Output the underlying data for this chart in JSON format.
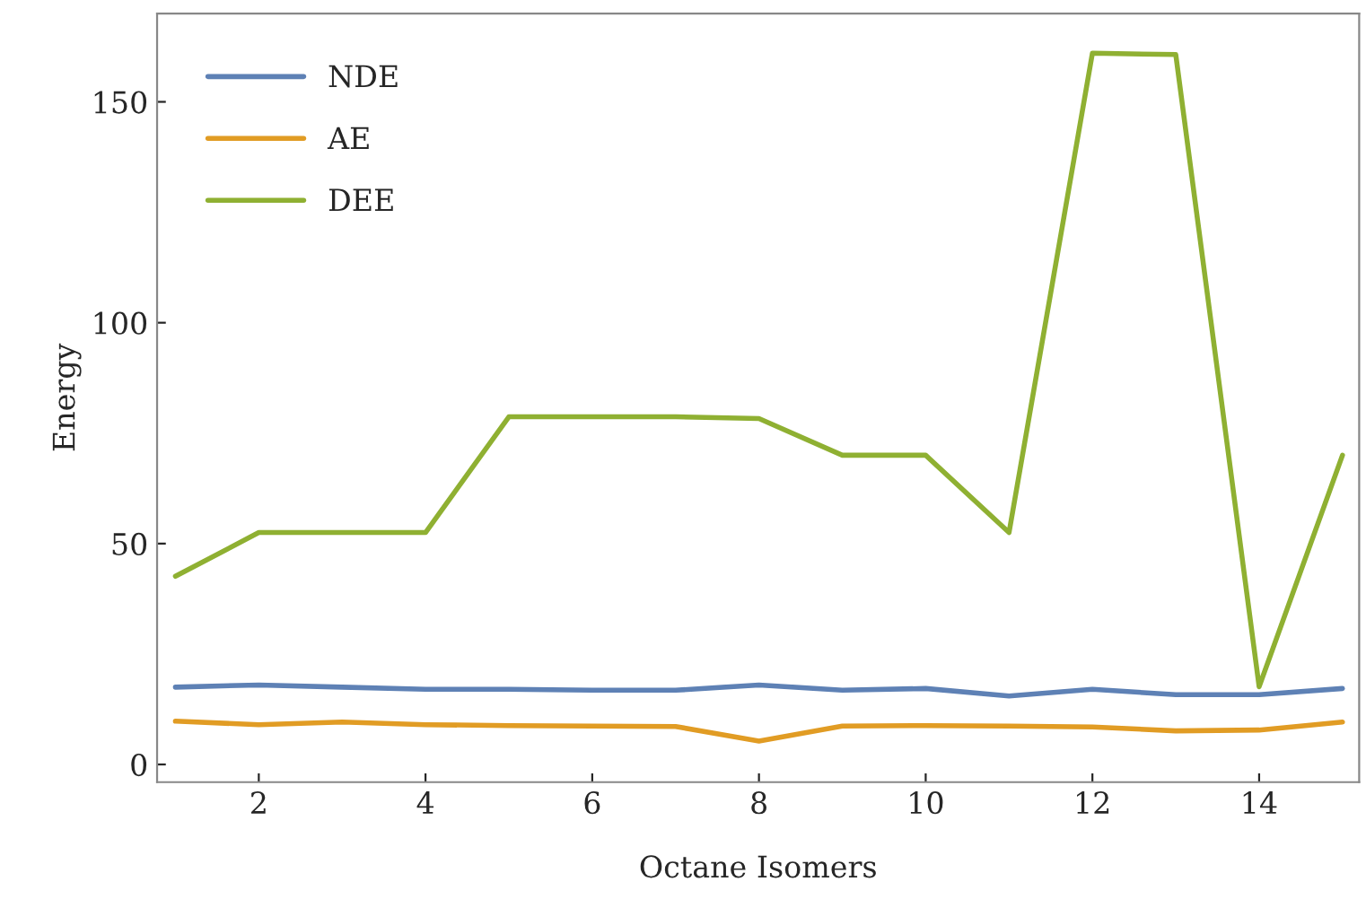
{
  "chart_data": {
    "type": "line",
    "xlabel": "Octane Isomers",
    "ylabel": "Energy",
    "x": [
      1,
      2,
      3,
      4,
      5,
      6,
      7,
      8,
      9,
      10,
      11,
      12,
      13,
      14,
      15
    ],
    "series": [
      {
        "name": "NDE",
        "color": "#5e81b5",
        "values": [
          17.5,
          18,
          17.5,
          17,
          17,
          16.8,
          16.8,
          18,
          16.8,
          17.2,
          15.5,
          17,
          15.8,
          15.8,
          17.2
        ]
      },
      {
        "name": "AE",
        "color": "#e19c24",
        "values": [
          9.8,
          9,
          9.6,
          9,
          8.8,
          8.7,
          8.6,
          5.3,
          8.7,
          8.8,
          8.7,
          8.5,
          7.6,
          7.8,
          9.6
        ]
      },
      {
        "name": "DEE",
        "color": "#8fb032",
        "values": [
          42.6,
          52.5,
          52.5,
          52.5,
          78.7,
          78.7,
          78.7,
          78.3,
          70,
          70,
          52.5,
          161,
          160.7,
          17.6,
          70
        ]
      }
    ],
    "xlim": [
      0.78,
      15.2
    ],
    "ylim": [
      -4,
      170
    ],
    "xticks": [
      2,
      4,
      6,
      8,
      10,
      12,
      14
    ],
    "yticks": [
      0,
      50,
      100,
      150
    ],
    "grid": false,
    "legend": "top left",
    "marker": "none",
    "line_style": "solid"
  }
}
